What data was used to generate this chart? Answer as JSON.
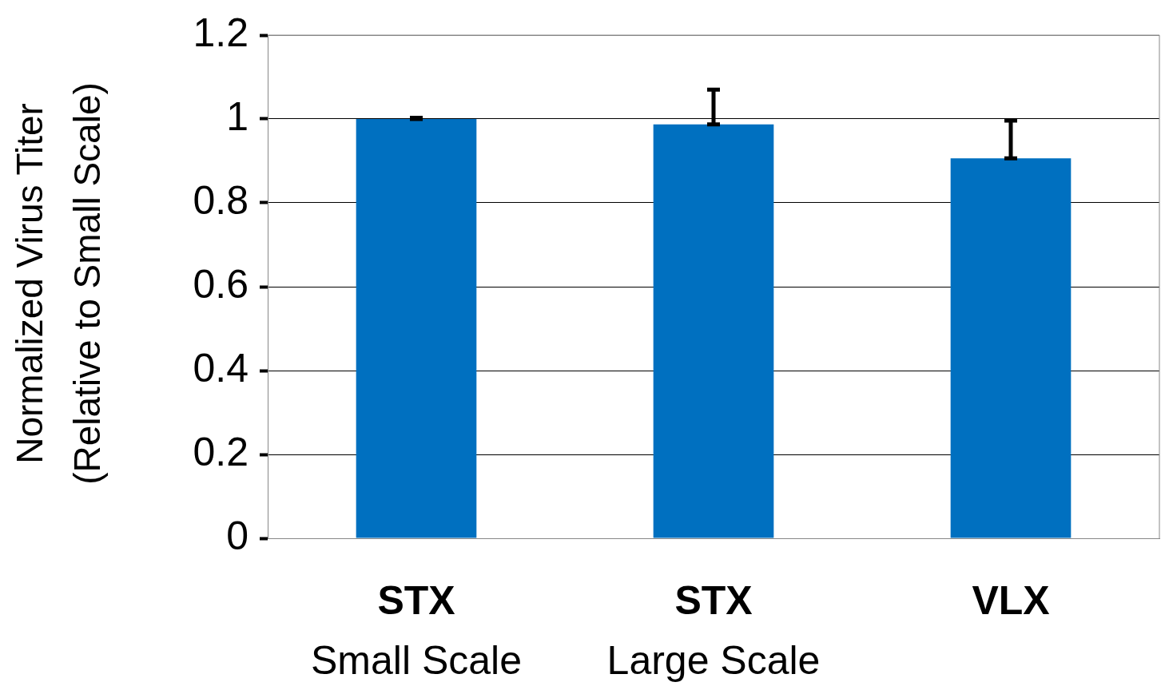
{
  "chart_data": {
    "type": "bar",
    "ylabel": "Normalized Virus Titer\n(Relative to Small Scale)",
    "categories": [
      "STX\nSmall Scale",
      "STX\nLarge Scale",
      "VLX"
    ],
    "values": [
      1.0,
      0.987,
      0.906
    ],
    "errors": [
      [
        1.0,
        1.003
      ],
      [
        0.987,
        1.07
      ],
      [
        0.906,
        0.996
      ]
    ],
    "color": "#0070c0",
    "ylim": [
      0,
      1.2
    ],
    "yticks": [
      0,
      0.2,
      0.4,
      0.6,
      0.8,
      1,
      1.2
    ],
    "grid": "y",
    "legend": false
  }
}
